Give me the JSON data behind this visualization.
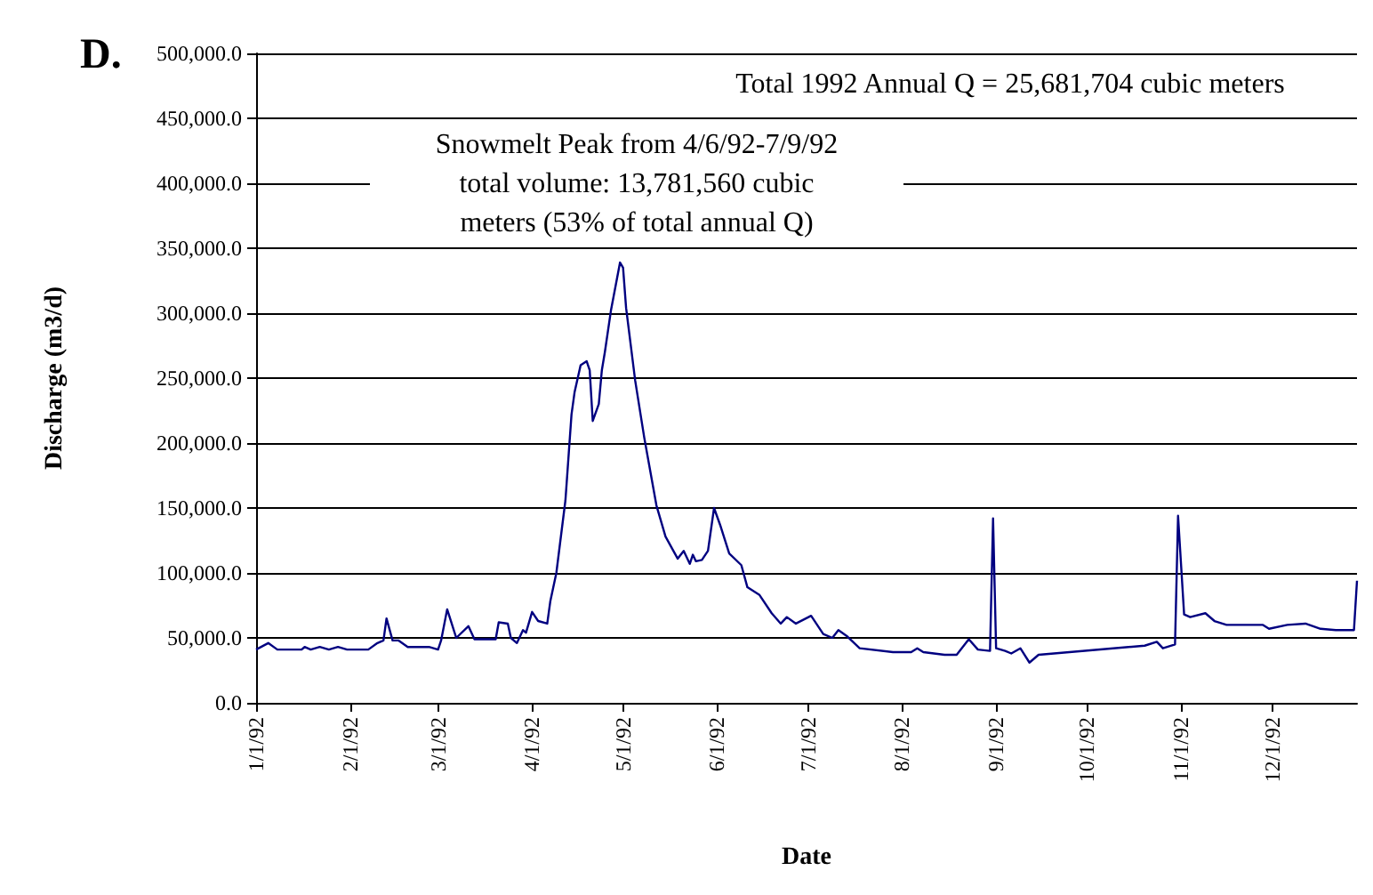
{
  "chart_data": {
    "type": "line",
    "title": "D.",
    "xlabel": "Date",
    "ylabel": "Discharge (m3/d)",
    "annotations": [
      "Total 1992 Annual Q = 25,681,704 cubic meters",
      "Snowmelt Peak from 4/6/92-7/9/92\ntotal volume: 13,781,560 cubic\nmeters (53% of total annual Q)"
    ],
    "series": [
      {
        "color": "#000080",
        "x": [
          "1992-01-01",
          "1992-01-05",
          "1992-01-08",
          "1992-01-16",
          "1992-01-17",
          "1992-01-19",
          "1992-01-22",
          "1992-01-25",
          "1992-01-28",
          "1992-01-31",
          "1992-02-07",
          "1992-02-10",
          "1992-02-12",
          "1992-02-13",
          "1992-02-15",
          "1992-02-17",
          "1992-02-20",
          "1992-02-24",
          "1992-02-27",
          "1992-03-01",
          "1992-03-02",
          "1992-03-04",
          "1992-03-07",
          "1992-03-11",
          "1992-03-13",
          "1992-03-20",
          "1992-03-21",
          "1992-03-24",
          "1992-03-25",
          "1992-03-27",
          "1992-03-29",
          "1992-03-30",
          "1992-04-01",
          "1992-04-03",
          "1992-04-06",
          "1992-04-07",
          "1992-04-09",
          "1992-04-12",
          "1992-04-14",
          "1992-04-15",
          "1992-04-17",
          "1992-04-19",
          "1992-04-20",
          "1992-04-21",
          "1992-04-23",
          "1992-04-24",
          "1992-04-25",
          "1992-04-27",
          "1992-04-30",
          "1992-05-01",
          "1992-05-02",
          "1992-05-05",
          "1992-05-08",
          "1992-05-12",
          "1992-05-15",
          "1992-05-19",
          "1992-05-21",
          "1992-05-23",
          "1992-05-24",
          "1992-05-25",
          "1992-05-27",
          "1992-05-29",
          "1992-05-31",
          "1992-06-02",
          "1992-06-05",
          "1992-06-09",
          "1992-06-11",
          "1992-06-15",
          "1992-06-19",
          "1992-06-22",
          "1992-06-24",
          "1992-06-27",
          "1992-07-02",
          "1992-07-06",
          "1992-07-09",
          "1992-07-11",
          "1992-07-14",
          "1992-07-18",
          "1992-07-29",
          "1992-08-04",
          "1992-08-06",
          "1992-08-08",
          "1992-08-15",
          "1992-08-19",
          "1992-08-23",
          "1992-08-26",
          "1992-08-30",
          "1992-08-31",
          "1992-09-01",
          "1992-09-04",
          "1992-09-06",
          "1992-09-09",
          "1992-09-12",
          "1992-09-15",
          "1992-10-20",
          "1992-10-24",
          "1992-10-26",
          "1992-10-30",
          "1992-10-31",
          "1992-11-02",
          "1992-11-04",
          "1992-11-09",
          "1992-11-12",
          "1992-11-16",
          "1992-11-28",
          "1992-11-30",
          "1992-12-06",
          "1992-12-12",
          "1992-12-17",
          "1992-12-22",
          "1992-12-28",
          "1992-12-29"
        ],
        "values": [
          41000,
          46000,
          41000,
          41000,
          43000,
          41000,
          43000,
          41000,
          43000,
          41000,
          41000,
          46000,
          48000,
          65000,
          48000,
          48000,
          43000,
          43000,
          43000,
          41000,
          48000,
          72000,
          50000,
          59000,
          49000,
          49000,
          62000,
          61000,
          50000,
          46000,
          56000,
          54000,
          70000,
          63000,
          61000,
          78000,
          100000,
          156000,
          222000,
          239000,
          260000,
          263000,
          256000,
          217000,
          230000,
          256000,
          270000,
          302000,
          339000,
          335000,
          304000,
          248000,
          204000,
          152000,
          128000,
          111000,
          117000,
          107000,
          114000,
          109000,
          110000,
          117000,
          150000,
          137000,
          115000,
          106000,
          89000,
          83000,
          69000,
          61000,
          66000,
          61000,
          67000,
          53000,
          50000,
          56000,
          51000,
          42000,
          39000,
          39000,
          42000,
          39000,
          37000,
          37000,
          49000,
          41000,
          40000,
          142000,
          42000,
          40000,
          38000,
          42000,
          31000,
          37000,
          44000,
          47000,
          42000,
          45000,
          144000,
          68000,
          66000,
          69000,
          63000,
          60000,
          60000,
          57000,
          60000,
          61000,
          57000,
          56000,
          56000,
          94000
        ]
      }
    ],
    "xlim": [
      "1992-01-01",
      "1992-12-29"
    ],
    "xticks": [
      {
        "value": "1992-01-01",
        "label": "1/1/92"
      },
      {
        "value": "1992-02-01",
        "label": "2/1/92"
      },
      {
        "value": "1992-03-01",
        "label": "3/1/92"
      },
      {
        "value": "1992-04-01",
        "label": "4/1/92"
      },
      {
        "value": "1992-05-01",
        "label": "5/1/92"
      },
      {
        "value": "1992-06-01",
        "label": "6/1/92"
      },
      {
        "value": "1992-07-01",
        "label": "7/1/92"
      },
      {
        "value": "1992-08-01",
        "label": "8/1/92"
      },
      {
        "value": "1992-09-01",
        "label": "9/1/92"
      },
      {
        "value": "1992-10-01",
        "label": "10/1/92"
      },
      {
        "value": "1992-11-01",
        "label": "11/1/92"
      },
      {
        "value": "1992-12-01",
        "label": "12/1/92"
      }
    ],
    "ylim": [
      0,
      500000
    ],
    "yticks": [
      {
        "value": 0,
        "label": "0.0"
      },
      {
        "value": 50000,
        "label": "50,000.0"
      },
      {
        "value": 100000,
        "label": "100,000.0"
      },
      {
        "value": 150000,
        "label": "150,000.0"
      },
      {
        "value": 200000,
        "label": "200,000.0"
      },
      {
        "value": 250000,
        "label": "250,000.0"
      },
      {
        "value": 300000,
        "label": "300,000.0"
      },
      {
        "value": 350000,
        "label": "350,000.0"
      },
      {
        "value": 400000,
        "label": "400,000.0"
      },
      {
        "value": 450000,
        "label": "450,000.0"
      },
      {
        "value": 500000,
        "label": "500,000.0"
      }
    ],
    "grid": "y",
    "marker": "none",
    "line_style": "solid"
  }
}
